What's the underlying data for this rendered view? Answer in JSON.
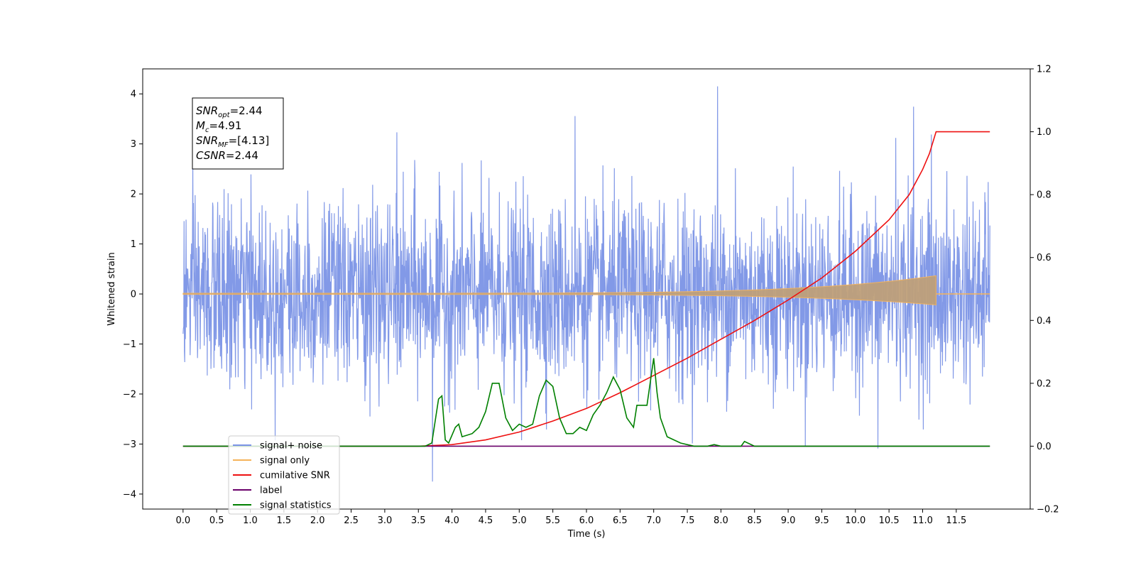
{
  "chart_data": {
    "type": "line",
    "xlabel": "Time (s)",
    "ylabel": "Whitened strain",
    "xlim": [
      -0.6,
      12.6
    ],
    "ylim": [
      -4.3,
      4.5
    ],
    "y2lim": [
      -0.2,
      1.2
    ],
    "x_ticks": [
      "0.0",
      "0.5",
      "1.0",
      "1.5",
      "2.0",
      "2.5",
      "3.0",
      "3.5",
      "4.0",
      "4.5",
      "5.0",
      "5.5",
      "6.0",
      "6.5",
      "7.0",
      "7.5",
      "8.0",
      "8.5",
      "9.0",
      "9.5",
      "10.0",
      "10.5",
      "11.0",
      "11.5"
    ],
    "y_ticks": [
      "−4",
      "−3",
      "−2",
      "−1",
      "0",
      "1",
      "2",
      "3",
      "4"
    ],
    "y2_ticks": [
      "−0.2",
      "0.0",
      "0.2",
      "0.4",
      "0.6",
      "0.8",
      "1.0",
      "1.2"
    ],
    "annotation_lines": [
      {
        "var": "SNR",
        "sub": "opt",
        "value": "=2.44"
      },
      {
        "var": "M",
        "sub": "c",
        "value": "=4.91"
      },
      {
        "var": "SNR",
        "sub": "MF",
        "value": "=[4.13]"
      },
      {
        "var": "CSNR",
        "sub": "",
        "value": "=2.44"
      }
    ],
    "legend_placement": "lower-left",
    "series": [
      {
        "name": "signal+ noise",
        "color": "#7b93e6",
        "axis": "left",
        "noise_std": 0.9,
        "t_start": 0.0,
        "t_end": 12.0
      },
      {
        "name": "signal only",
        "color": "#f5b35a",
        "axis": "left",
        "envelope_end": 0.35,
        "t_end": 11.2
      },
      {
        "name": "cumilative SNR",
        "color": "#ee1111",
        "axis": "right",
        "points": [
          [
            0,
            0
          ],
          [
            3.5,
            0
          ],
          [
            4.0,
            0.005
          ],
          [
            4.5,
            0.02
          ],
          [
            5.0,
            0.045
          ],
          [
            5.5,
            0.08
          ],
          [
            6.0,
            0.12
          ],
          [
            6.5,
            0.17
          ],
          [
            7.0,
            0.225
          ],
          [
            7.5,
            0.28
          ],
          [
            8.0,
            0.34
          ],
          [
            8.5,
            0.4
          ],
          [
            9.0,
            0.465
          ],
          [
            9.5,
            0.535
          ],
          [
            10.0,
            0.62
          ],
          [
            10.5,
            0.72
          ],
          [
            10.8,
            0.8
          ],
          [
            11.0,
            0.88
          ],
          [
            11.1,
            0.93
          ],
          [
            11.2,
            1.0
          ],
          [
            12.0,
            1.0
          ]
        ]
      },
      {
        "name": "label",
        "color": "#6a006a",
        "axis": "right",
        "points": [
          [
            0,
            0
          ],
          [
            12.0,
            0
          ]
        ]
      },
      {
        "name": "signal statistics",
        "color": "#008000",
        "axis": "right",
        "points": [
          [
            0,
            0
          ],
          [
            3.6,
            0.0
          ],
          [
            3.7,
            0.01
          ],
          [
            3.8,
            0.15
          ],
          [
            3.85,
            0.16
          ],
          [
            3.9,
            0.02
          ],
          [
            3.95,
            0.01
          ],
          [
            4.05,
            0.06
          ],
          [
            4.1,
            0.07
          ],
          [
            4.15,
            0.03
          ],
          [
            4.3,
            0.04
          ],
          [
            4.4,
            0.06
          ],
          [
            4.5,
            0.11
          ],
          [
            4.6,
            0.2
          ],
          [
            4.7,
            0.2
          ],
          [
            4.8,
            0.09
          ],
          [
            4.9,
            0.05
          ],
          [
            5.0,
            0.07
          ],
          [
            5.1,
            0.06
          ],
          [
            5.2,
            0.07
          ],
          [
            5.3,
            0.16
          ],
          [
            5.4,
            0.21
          ],
          [
            5.5,
            0.19
          ],
          [
            5.6,
            0.09
          ],
          [
            5.7,
            0.04
          ],
          [
            5.8,
            0.04
          ],
          [
            5.9,
            0.06
          ],
          [
            6.0,
            0.05
          ],
          [
            6.1,
            0.1
          ],
          [
            6.2,
            0.13
          ],
          [
            6.3,
            0.17
          ],
          [
            6.4,
            0.22
          ],
          [
            6.5,
            0.18
          ],
          [
            6.6,
            0.09
          ],
          [
            6.7,
            0.06
          ],
          [
            6.75,
            0.13
          ],
          [
            6.9,
            0.13
          ],
          [
            7.0,
            0.28
          ],
          [
            7.05,
            0.17
          ],
          [
            7.1,
            0.09
          ],
          [
            7.2,
            0.03
          ],
          [
            7.4,
            0.01
          ],
          [
            7.6,
            0.0
          ],
          [
            7.8,
            0.0
          ],
          [
            7.9,
            0.005
          ],
          [
            8.0,
            0.0
          ],
          [
            8.3,
            0.0
          ],
          [
            8.35,
            0.015
          ],
          [
            8.5,
            0.0
          ],
          [
            12.0,
            0.0
          ]
        ]
      }
    ]
  }
}
